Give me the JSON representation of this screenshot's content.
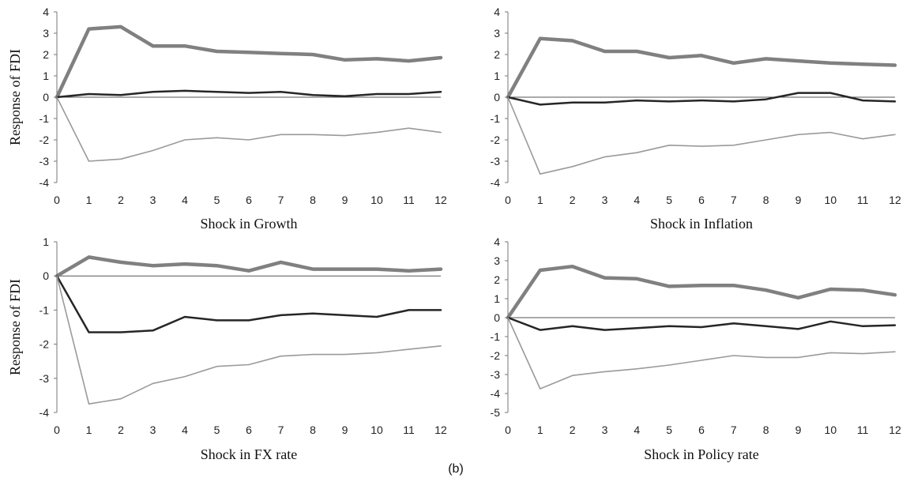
{
  "figure_caption": "(b)",
  "colors": {
    "upper": "#808080",
    "center": "#262626",
    "lower": "#9a9a9a"
  },
  "chart_data": [
    {
      "type": "line",
      "xlabel": "Shock in Growth",
      "ylabel": "Response of FDI",
      "x": [
        0,
        1,
        2,
        3,
        4,
        5,
        6,
        7,
        8,
        9,
        10,
        11,
        12
      ],
      "ylim": [
        -4,
        4
      ],
      "yticks": [
        4,
        3,
        2,
        1,
        0,
        -1,
        -2,
        -3,
        -4
      ],
      "series": [
        {
          "role": "upper",
          "values": [
            0,
            3.2,
            3.3,
            2.4,
            2.4,
            2.15,
            2.1,
            2.05,
            2.0,
            1.75,
            1.8,
            1.7,
            1.85
          ]
        },
        {
          "role": "center",
          "values": [
            0,
            0.15,
            0.1,
            0.25,
            0.3,
            0.25,
            0.2,
            0.25,
            0.1,
            0.05,
            0.15,
            0.15,
            0.25
          ]
        },
        {
          "role": "lower",
          "values": [
            0,
            -3.0,
            -2.9,
            -2.5,
            -2.0,
            -1.9,
            -2.0,
            -1.75,
            -1.75,
            -1.8,
            -1.65,
            -1.45,
            -1.65
          ]
        }
      ]
    },
    {
      "type": "line",
      "xlabel": "Shock in Inflation",
      "ylabel": "",
      "x": [
        0,
        1,
        2,
        3,
        4,
        5,
        6,
        7,
        8,
        9,
        10,
        11,
        12
      ],
      "ylim": [
        -4,
        4
      ],
      "yticks": [
        4,
        3,
        2,
        1,
        0,
        -1,
        -2,
        -3,
        -4
      ],
      "series": [
        {
          "role": "upper",
          "values": [
            0,
            2.75,
            2.65,
            2.15,
            2.15,
            1.85,
            1.95,
            1.6,
            1.8,
            1.7,
            1.6,
            1.55,
            1.5
          ]
        },
        {
          "role": "center",
          "values": [
            0,
            -0.35,
            -0.25,
            -0.25,
            -0.15,
            -0.2,
            -0.15,
            -0.2,
            -0.1,
            0.2,
            0.2,
            -0.15,
            -0.2
          ]
        },
        {
          "role": "lower",
          "values": [
            0,
            -3.6,
            -3.25,
            -2.8,
            -2.6,
            -2.25,
            -2.3,
            -2.25,
            -2.0,
            -1.75,
            -1.65,
            -1.95,
            -1.75
          ]
        }
      ]
    },
    {
      "type": "line",
      "xlabel": "Shock in FX rate",
      "ylabel": "Response of FDI",
      "x": [
        0,
        1,
        2,
        3,
        4,
        5,
        6,
        7,
        8,
        9,
        10,
        11,
        12
      ],
      "ylim": [
        -4,
        1
      ],
      "yticks": [
        1,
        0,
        -1,
        -2,
        -3,
        -4
      ],
      "series": [
        {
          "role": "upper",
          "values": [
            0,
            0.55,
            0.4,
            0.3,
            0.35,
            0.3,
            0.15,
            0.4,
            0.2,
            0.2,
            0.2,
            0.15,
            0.2
          ]
        },
        {
          "role": "center",
          "values": [
            0,
            -1.65,
            -1.65,
            -1.6,
            -1.2,
            -1.3,
            -1.3,
            -1.15,
            -1.1,
            -1.15,
            -1.2,
            -1.0,
            -1.0
          ]
        },
        {
          "role": "lower",
          "values": [
            0,
            -3.75,
            -3.6,
            -3.15,
            -2.95,
            -2.65,
            -2.6,
            -2.35,
            -2.3,
            -2.3,
            -2.25,
            -2.15,
            -2.05
          ]
        }
      ]
    },
    {
      "type": "line",
      "xlabel": "Shock in Policy rate",
      "ylabel": "",
      "x": [
        0,
        1,
        2,
        3,
        4,
        5,
        6,
        7,
        8,
        9,
        10,
        11,
        12
      ],
      "ylim": [
        -5,
        4
      ],
      "yticks": [
        4,
        3,
        2,
        1,
        0,
        -1,
        -2,
        -3,
        -4,
        -5
      ],
      "series": [
        {
          "role": "upper",
          "values": [
            0,
            2.5,
            2.7,
            2.1,
            2.05,
            1.65,
            1.7,
            1.7,
            1.45,
            1.05,
            1.5,
            1.45,
            1.2
          ]
        },
        {
          "role": "center",
          "values": [
            0,
            -0.65,
            -0.45,
            -0.65,
            -0.55,
            -0.45,
            -0.5,
            -0.3,
            -0.45,
            -0.6,
            -0.2,
            -0.45,
            -0.4
          ]
        },
        {
          "role": "lower",
          "values": [
            0,
            -3.75,
            -3.05,
            -2.85,
            -2.7,
            -2.5,
            -2.25,
            -2.0,
            -2.1,
            -2.1,
            -1.85,
            -1.9,
            -1.8
          ]
        }
      ]
    }
  ]
}
